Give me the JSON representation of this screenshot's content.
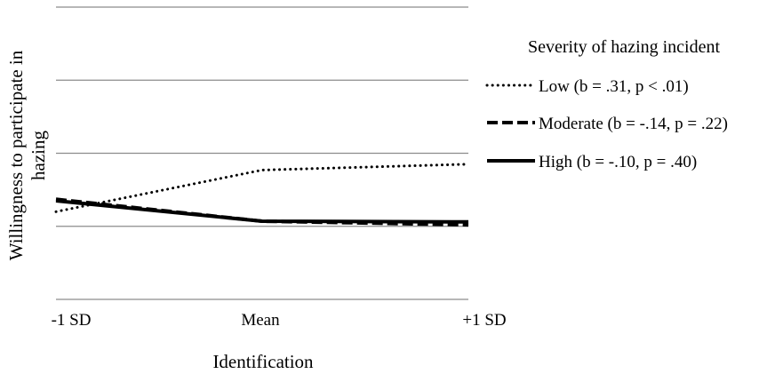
{
  "chart_data": {
    "type": "line",
    "categories": [
      "-1 SD",
      "Mean",
      "+1 SD"
    ],
    "xlabel": "Identification",
    "ylabel": "Willingness to participate in hazing",
    "ylim": [
      0,
      4
    ],
    "gridlines": [
      0,
      1,
      2,
      3,
      4
    ],
    "grid": "horizontal",
    "legend_position": "right",
    "legend_title": "Severity of hazing incident",
    "series": [
      {
        "name": "Low (b = .31, p < .01)",
        "style": "dotted",
        "values": [
          1.2,
          1.77,
          1.85
        ]
      },
      {
        "name": "Moderate (b = -.14, p = .22)",
        "style": "dashed",
        "values": [
          1.37,
          1.07,
          1.02
        ]
      },
      {
        "name": "High (b = -.10, p = .40)",
        "style": "solid",
        "values": [
          1.35,
          1.07,
          1.06
        ]
      }
    ]
  },
  "colors": {
    "line": "#000000",
    "grid": "#8c8c8c"
  }
}
